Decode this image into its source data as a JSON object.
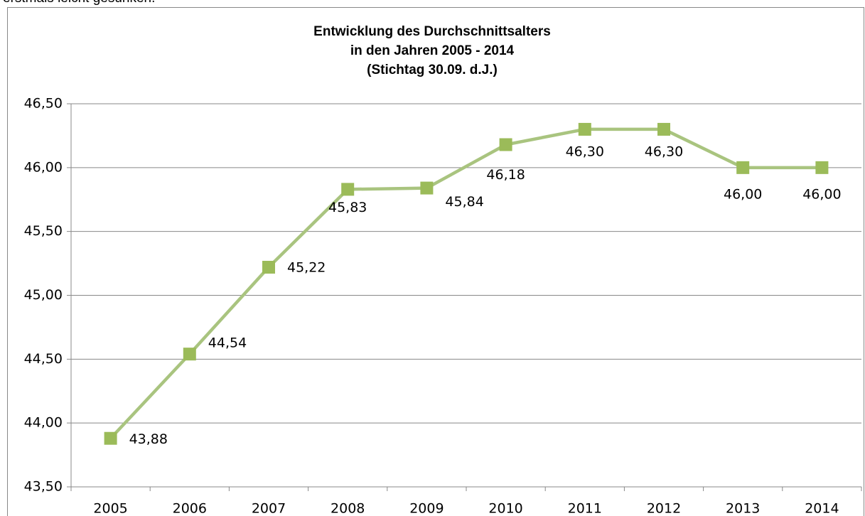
{
  "caption_above": "erstmals leicht gesunken.",
  "chart_data": {
    "type": "line",
    "title": [
      "Entwicklung des Durchschnittsalters",
      "in den Jahren 2005 - 2014",
      "(Stichtag 30.09. d.J.)"
    ],
    "categories": [
      "2005",
      "2006",
      "2007",
      "2008",
      "2009",
      "2010",
      "2011",
      "2012",
      "2013",
      "2014"
    ],
    "series": [
      {
        "color": "#9bbb59",
        "values": [
          43.88,
          44.54,
          45.22,
          45.83,
          45.84,
          46.18,
          46.3,
          46.3,
          46.0,
          46.0
        ],
        "value_labels": [
          "43,88",
          "44,54",
          "45,22",
          "45,83",
          "45,84",
          "46,18",
          "46,30",
          "46,30",
          "46,00",
          "46,00"
        ]
      }
    ],
    "ylim": [
      43.5,
      46.5
    ],
    "yticks": [
      {
        "value": 43.5,
        "label": "43,50"
      },
      {
        "value": 44,
        "label": "44,00"
      },
      {
        "value": 44.5,
        "label": "44,50"
      },
      {
        "value": 45,
        "label": "45,00"
      },
      {
        "value": 45.5,
        "label": "45,50"
      },
      {
        "value": 46,
        "label": "46,00"
      },
      {
        "value": 46.5,
        "label": "46,50"
      }
    ],
    "grid": true
  }
}
